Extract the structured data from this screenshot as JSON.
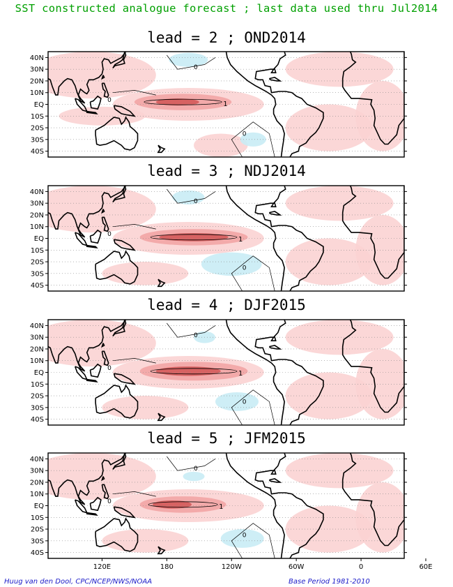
{
  "title": "SST constructed analogue forecast ; last data used thru Jul2014",
  "panels": [
    {
      "title": "lead = 2 ; OND2014"
    },
    {
      "title": "lead = 3 ; NDJ2014"
    },
    {
      "title": "lead = 4 ; DJF2015"
    },
    {
      "title": "lead = 5 ; JFM2015"
    }
  ],
  "lat_labels": [
    "40N",
    "30N",
    "20N",
    "10N",
    "EQ",
    "10S",
    "20S",
    "30S",
    "40S"
  ],
  "lon_labels": [
    "120E",
    "180",
    "120W",
    "60W",
    "0",
    "60E"
  ],
  "contour_labels": {
    "zero": "0",
    "one": "1"
  },
  "credit": "Huug van den Dool, CPC/NCEP/NWS/NOAA",
  "base_period": "Base Period 1981-2010",
  "colors": {
    "title": "#00a000",
    "credit": "#1a1ac8",
    "warm_light": "#fbd3d3",
    "warm_mid": "#f2a5a5",
    "warm_strong": "#d45a5a",
    "cool": "#c9ecf5"
  }
}
